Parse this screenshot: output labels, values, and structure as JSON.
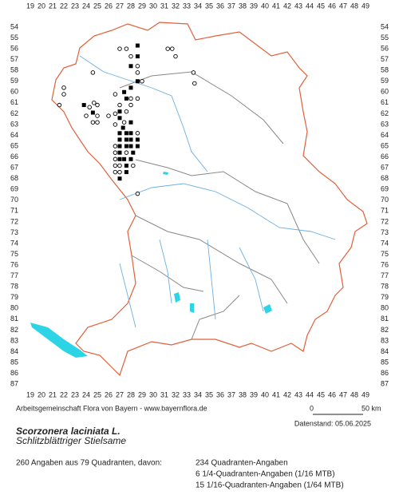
{
  "columns": [
    19,
    20,
    21,
    22,
    23,
    24,
    25,
    26,
    27,
    28,
    29,
    30,
    31,
    32,
    33,
    34,
    35,
    36,
    37,
    38,
    39,
    40,
    41,
    42,
    43,
    44,
    45,
    46,
    47,
    48,
    49
  ],
  "rows": [
    54,
    55,
    56,
    57,
    58,
    59,
    60,
    61,
    62,
    63,
    64,
    65,
    66,
    67,
    68,
    69,
    70,
    71,
    72,
    73,
    74,
    75,
    76,
    77,
    78,
    79,
    80,
    81,
    82,
    83,
    84,
    85,
    86,
    87
  ],
  "credit": "Arbeitsgemeinschaft Flora von Bayern - www.bayernflora.de",
  "scale": {
    "start": "0",
    "end": "50 km"
  },
  "date": "Datenstand: 05.06.2025",
  "title": "Scorzonera laciniata L.",
  "subtitle": "Schlitzblättriger Stielsame",
  "summary": "260 Angaben aus 79 Quadranten, davon:",
  "details": [
    "234 Quadranten-Angaben",
    "6 1/4-Quadranten-Angaben (1/16 MTB)",
    "15 1/16-Quadranten-Angaben (1/64 MTB)"
  ]
}
